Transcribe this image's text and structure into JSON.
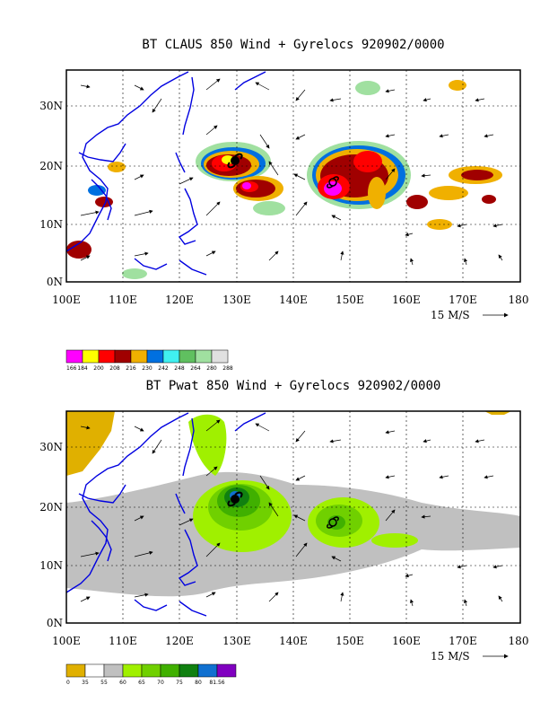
{
  "panels": [
    {
      "id": "claus",
      "title": "BT CLAUS 850 Wind + Gyrelocs 920902/0000",
      "lon_ticks": [
        "100E",
        "110E",
        "120E",
        "130E",
        "140E",
        "150E",
        "160E",
        "170E",
        "180"
      ],
      "lat_ticks": [
        "0N",
        "10N",
        "20N",
        "30N"
      ],
      "vector_ref": "15 M/S",
      "colorbar": {
        "colors": [
          "#ff00ff",
          "#ffff00",
          "#ff0000",
          "#a00000",
          "#f0b000",
          "#0070e0",
          "#40f0f0",
          "#60c060",
          "#a0e0a0",
          "#e0e0e0"
        ],
        "labels": [
          "166",
          "184",
          "200",
          "208",
          "216",
          "230",
          "242",
          "248",
          "264",
          "280",
          "288"
        ]
      },
      "storms": [
        {
          "symbol": "typhoon-symbol",
          "lon": 128.5,
          "lat": 20.5
        },
        {
          "symbol": "typhoon-symbol",
          "lon": 147.5,
          "lat": 17.0
        }
      ]
    },
    {
      "id": "pwat",
      "title": "BT Pwat 850 Wind + Gyrelocs 920902/0000",
      "lon_ticks": [
        "100E",
        "110E",
        "120E",
        "130E",
        "140E",
        "150E",
        "160E",
        "170E",
        "180"
      ],
      "lat_ticks": [
        "0N",
        "10N",
        "20N",
        "30N"
      ],
      "vector_ref": "15 M/S",
      "colorbar": {
        "colors": [
          "#e0b000",
          "#ffffff",
          "#c0c0c0",
          "#a0f000",
          "#70d000",
          "#40b000",
          "#108010",
          "#1070d0",
          "#8000c0"
        ],
        "labels": [
          "0",
          "35",
          "55",
          "60",
          "65",
          "70",
          "75",
          "80",
          "81.56"
        ]
      },
      "storms": [
        {
          "symbol": "typhoon-symbol",
          "lon": 128.5,
          "lat": 20.5
        },
        {
          "symbol": "typhoon-symbol",
          "lon": 147.5,
          "lat": 17.0
        }
      ]
    }
  ]
}
